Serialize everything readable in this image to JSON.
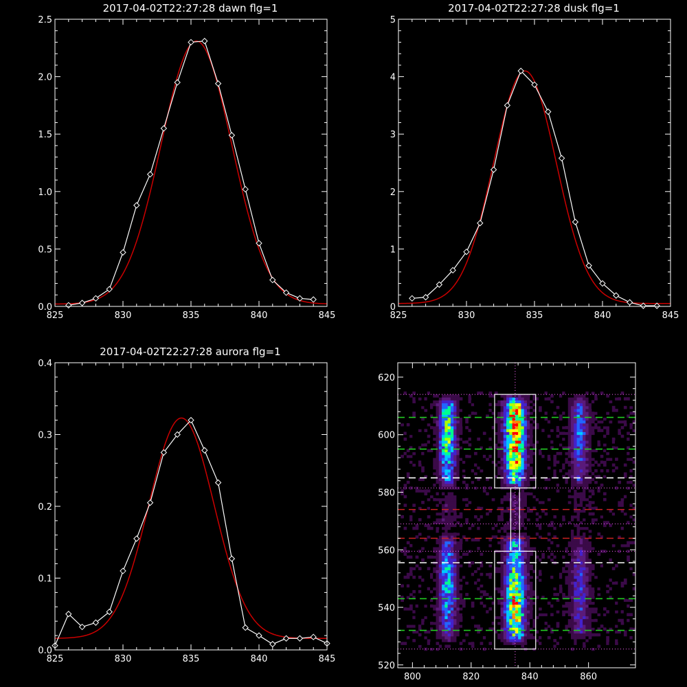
{
  "figure": {
    "background": "#000000",
    "axis_color": "#ffffff",
    "data_color": "#ffffff",
    "fit_color": "#cc0000"
  },
  "chart_data": [
    {
      "id": "dawn",
      "type": "line",
      "title": "2017-04-02T22:27:28 dawn flg=1",
      "xlim": [
        825,
        845
      ],
      "ylim": [
        0,
        2.5
      ],
      "xticks": [
        825,
        830,
        835,
        840,
        845
      ],
      "yticks": [
        0.0,
        0.5,
        1.0,
        1.5,
        2.0,
        2.5
      ],
      "ytick_labels": [
        "0.0",
        "0.5",
        "1.0",
        "1.5",
        "2.0",
        "2.5"
      ],
      "series": [
        {
          "role": "data",
          "marker": "diamond",
          "x": [
            826,
            827,
            828,
            829,
            830,
            831,
            832,
            833,
            834,
            835,
            836,
            837,
            838,
            839,
            840,
            841,
            842,
            843,
            844
          ],
          "y": [
            0.01,
            0.03,
            0.07,
            0.15,
            0.47,
            0.88,
            1.15,
            1.55,
            1.95,
            2.3,
            2.31,
            1.94,
            1.49,
            1.02,
            0.55,
            0.23,
            0.12,
            0.07,
            0.06
          ]
        },
        {
          "role": "fit",
          "model": "gaussian",
          "center": 835.4,
          "sigma": 2.6,
          "amplitude": 2.29,
          "baseline": 0.02
        }
      ]
    },
    {
      "id": "dusk",
      "type": "line",
      "title": "2017-04-02T22:27:28 dusk flg=1",
      "xlim": [
        825,
        845
      ],
      "ylim": [
        0,
        5
      ],
      "xticks": [
        825,
        830,
        835,
        840,
        845
      ],
      "yticks": [
        0,
        1,
        2,
        3,
        4,
        5
      ],
      "ytick_labels": [
        "0",
        "1",
        "2",
        "3",
        "4",
        "5"
      ],
      "series": [
        {
          "role": "data",
          "marker": "diamond",
          "x": [
            826,
            827,
            828,
            829,
            830,
            831,
            832,
            833,
            834,
            835,
            836,
            837,
            838,
            839,
            840,
            841,
            842,
            843,
            844
          ],
          "y": [
            0.14,
            0.16,
            0.38,
            0.63,
            0.95,
            1.45,
            2.38,
            3.5,
            4.1,
            3.86,
            3.39,
            2.58,
            1.47,
            0.71,
            0.4,
            0.19,
            0.07,
            0.01,
            0.01
          ]
        },
        {
          "role": "fit",
          "model": "gaussian",
          "center": 834.3,
          "sigma": 2.3,
          "amplitude": 4.05,
          "baseline": 0.05
        }
      ]
    },
    {
      "id": "aurora",
      "type": "line",
      "title": "2017-04-02T22:27:28 aurora flg=1",
      "xlim": [
        825,
        845
      ],
      "ylim": [
        0,
        0.4
      ],
      "xticks": [
        825,
        830,
        835,
        840,
        845
      ],
      "yticks": [
        0.0,
        0.1,
        0.2,
        0.3,
        0.4
      ],
      "ytick_labels": [
        "0.0",
        "0.1",
        "0.2",
        "0.3",
        "0.4"
      ],
      "series": [
        {
          "role": "data",
          "marker": "diamond",
          "x": [
            825,
            826,
            827,
            828,
            829,
            830,
            831,
            832,
            833,
            834,
            835,
            836,
            837,
            838,
            839,
            840,
            841,
            842,
            843,
            844,
            845
          ],
          "y": [
            0.006,
            0.05,
            0.032,
            0.038,
            0.053,
            0.11,
            0.155,
            0.205,
            0.275,
            0.3,
            0.32,
            0.278,
            0.233,
            0.127,
            0.031,
            0.02,
            0.008,
            0.016,
            0.016,
            0.018,
            0.009
          ]
        },
        {
          "role": "fit",
          "model": "gaussian",
          "center": 834.3,
          "sigma": 2.4,
          "amplitude": 0.307,
          "baseline": 0.016
        }
      ]
    },
    {
      "id": "image",
      "type": "heatmap",
      "xlim": [
        795,
        876
      ],
      "ylim": [
        519,
        625
      ],
      "xticks": [
        800,
        820,
        840,
        860
      ],
      "yticks": [
        520,
        540,
        560,
        580,
        600,
        620
      ],
      "colormap": [
        "#000000",
        "#3b0a48",
        "#5a1a7a",
        "#4422cc",
        "#2266ff",
        "#00c8ff",
        "#00ff90",
        "#aaff00",
        "#ffff00",
        "#ff8800",
        "#ff0000"
      ],
      "emission_columns": [
        {
          "x_center": 812,
          "x_width": 6,
          "y_from": 580,
          "y_to": 614,
          "peak": 0.62,
          "y_peak": 600
        },
        {
          "x_center": 812,
          "x_width": 6,
          "y_from": 527,
          "y_to": 566,
          "peak": 0.5,
          "y_peak": 548
        },
        {
          "x_center": 835,
          "x_width": 7,
          "y_from": 580,
          "y_to": 614,
          "peak": 1.0,
          "y_peak": 600
        },
        {
          "x_center": 835,
          "x_width": 7,
          "y_from": 526,
          "y_to": 566,
          "peak": 0.82,
          "y_peak": 540
        },
        {
          "x_center": 857,
          "x_width": 6,
          "y_from": 580,
          "y_to": 614,
          "peak": 0.38,
          "y_peak": 602
        },
        {
          "x_center": 857,
          "x_width": 6,
          "y_from": 527,
          "y_to": 566,
          "peak": 0.3,
          "y_peak": 545
        }
      ],
      "boxes": [
        {
          "x": [
            828,
            842
          ],
          "y": [
            581.5,
            614
          ]
        },
        {
          "x": [
            828,
            842
          ],
          "y": [
            525.5,
            559.5
          ]
        }
      ],
      "vertical_line": {
        "x": 835,
        "style": "dotted",
        "color": "#ff66ff"
      },
      "hlines": [
        {
          "y": 614,
          "color": "#ff66ff",
          "style": "dotted"
        },
        {
          "y": 606,
          "color": "#22cc22",
          "style": "dashed"
        },
        {
          "y": 595,
          "color": "#22cc22",
          "style": "dashed"
        },
        {
          "y": 585,
          "color": "#ffffff",
          "style": "dashed"
        },
        {
          "y": 581.5,
          "color": "#ff66ff",
          "style": "dotted"
        },
        {
          "y": 574,
          "color": "#cc2222",
          "style": "dashed"
        },
        {
          "y": 569,
          "color": "#ff66ff",
          "style": "dotted"
        },
        {
          "y": 564,
          "color": "#cc2222",
          "style": "dashed"
        },
        {
          "y": 559.5,
          "color": "#ff66ff",
          "style": "dotted"
        },
        {
          "y": 555.5,
          "color": "#ffffff",
          "style": "dashed"
        },
        {
          "y": 543,
          "color": "#22cc22",
          "style": "dashed"
        },
        {
          "y": 532,
          "color": "#22cc22",
          "style": "dashed"
        },
        {
          "y": 525.5,
          "color": "#ff66ff",
          "style": "dotted"
        }
      ]
    }
  ]
}
